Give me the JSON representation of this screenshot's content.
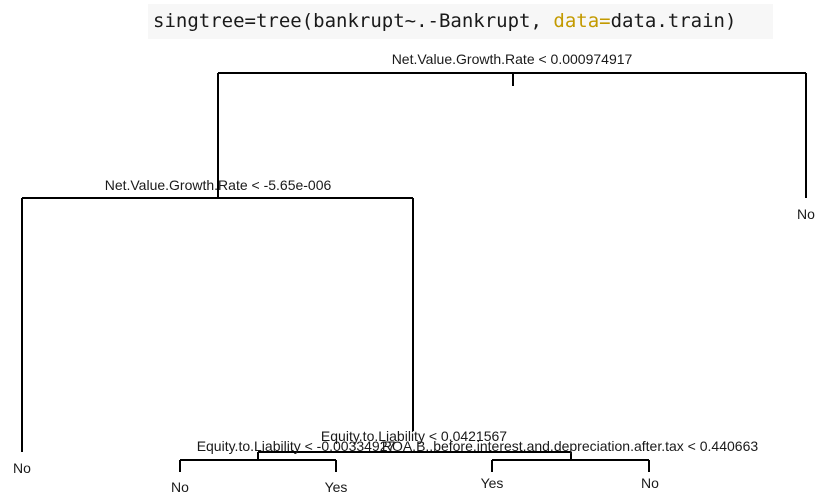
{
  "code": {
    "part1": "singtree=tree(bankrupt~.-Bankrupt, ",
    "keyword": "data=",
    "part2": "data.train)"
  },
  "tree": {
    "root_split": "Net.Value.Growth.Rate < 0.000974917",
    "left_split": "Net.Value.Growth.Rate < -5.65e-006",
    "mid_split": "Equity.to.Liability < 0.0421567",
    "mid_left_split": "Equity.to.Liability < -0.00334927",
    "mid_right_split": "ROA.B..before.interest.and.depreciation.after.tax < 0.440663",
    "leaves": {
      "far_left": "No",
      "far_right": "No",
      "ll": "No",
      "lr": "Yes",
      "rl": "Yes",
      "rr": "No"
    }
  }
}
